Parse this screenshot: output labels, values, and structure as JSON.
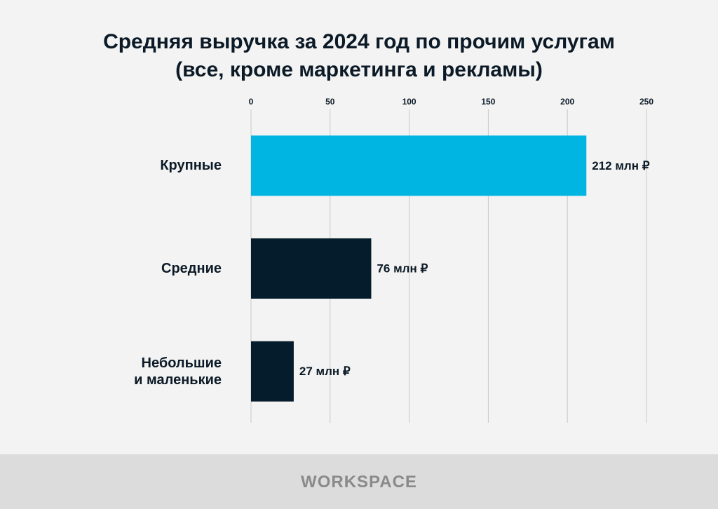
{
  "chart_data": {
    "type": "barh",
    "title": "Средняя выручка за 2024 год по прочим услугам\n(все, кроме маркетинга и рекламы)",
    "categories": [
      "Крупные",
      "Средние",
      "Небольшие\nи маленькие"
    ],
    "values": [
      212,
      76,
      27
    ],
    "value_labels": [
      "212 млн ₽",
      "76 млн ₽",
      "27 млн ₽"
    ],
    "colors": [
      "#00b5e2",
      "#041c2c",
      "#041c2c"
    ],
    "xlim": [
      0,
      250
    ],
    "xticks": [
      0,
      50,
      100,
      150,
      200,
      250
    ],
    "grid": true
  },
  "footer": {
    "brand": "WORKSPACE"
  }
}
